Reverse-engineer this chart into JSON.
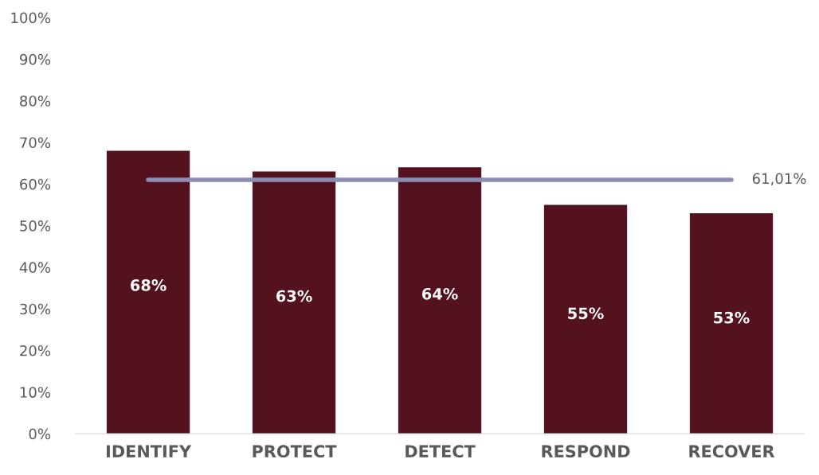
{
  "chart_data": {
    "type": "bar",
    "categories": [
      "IDENTIFY",
      "PROTECT",
      "DETECT",
      "RESPOND",
      "RECOVER"
    ],
    "values": [
      68,
      63,
      64,
      55,
      53
    ],
    "color": "#54121f",
    "value_labels": [
      "68%",
      "63%",
      "64%",
      "55%",
      "53%"
    ],
    "ylim": [
      0,
      100
    ],
    "yticks": [
      {
        "value": 0,
        "label": "0%"
      },
      {
        "value": 10,
        "label": "10%"
      },
      {
        "value": 20,
        "label": "20%"
      },
      {
        "value": 30,
        "label": "30%"
      },
      {
        "value": 40,
        "label": "40%"
      },
      {
        "value": 50,
        "label": "50%"
      },
      {
        "value": 60,
        "label": "60%"
      },
      {
        "value": 70,
        "label": "70%"
      },
      {
        "value": 80,
        "label": "80%"
      },
      {
        "value": 90,
        "label": "90%"
      },
      {
        "value": 100,
        "label": "100%"
      }
    ],
    "ref_lines": [
      {
        "axis": "y",
        "value": 61.01,
        "label": "61,01%",
        "color": "#8e8eb5"
      }
    ],
    "grid": false,
    "legend": false
  }
}
